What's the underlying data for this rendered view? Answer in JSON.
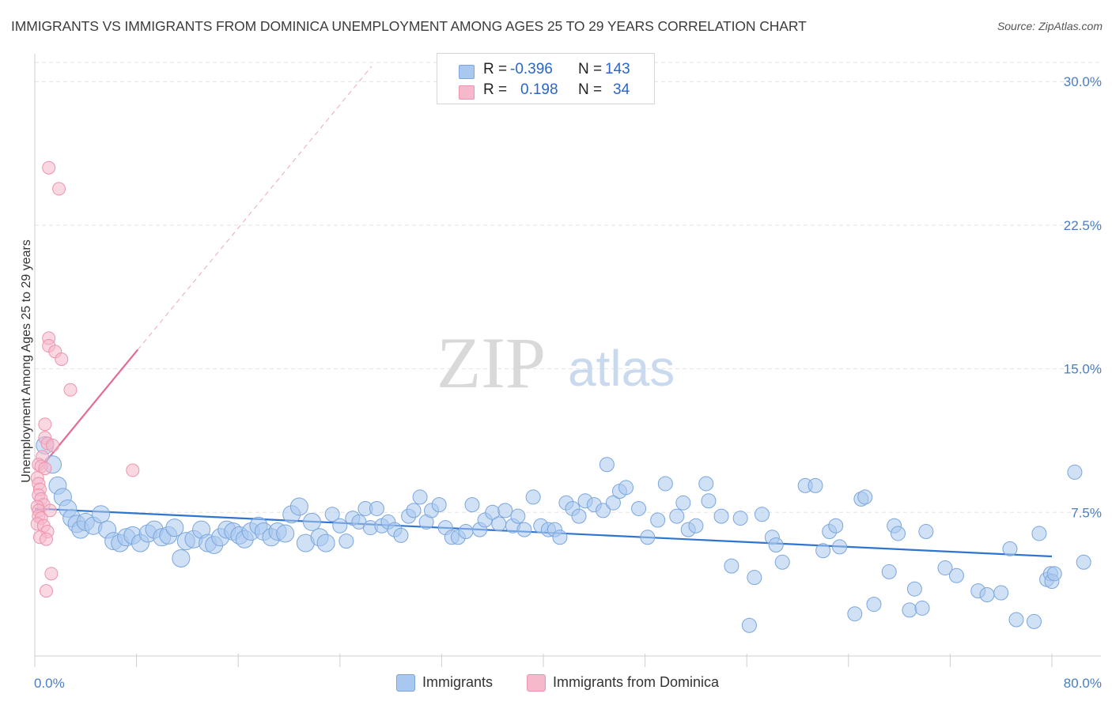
{
  "title": "IMMIGRANTS VS IMMIGRANTS FROM DOMINICA UNEMPLOYMENT AMONG AGES 25 TO 29 YEARS CORRELATION CHART",
  "source": "Source: ZipAtlas.com",
  "watermark": {
    "zip": "ZIP",
    "atlas": "atlas"
  },
  "legend": {
    "r_label": "R =",
    "n_label": "N =",
    "rows": [
      {
        "name": "Immigrants",
        "r": "-0.396",
        "n": "143"
      },
      {
        "name": "Immigrants from Dominica",
        "r": "0.198",
        "n": "34"
      }
    ]
  },
  "colors": {
    "blue_fill": "#a9c8ef",
    "blue_stroke": "#7aa6dd",
    "blue_line": "#2f74d0",
    "pink_fill": "#f6b8cb",
    "pink_stroke": "#ec93ad",
    "pink_line": "#e26c93",
    "grid": "#e3e3e3",
    "axis_text": "#4a7ec2"
  },
  "chart_data": {
    "type": "scatter",
    "title": "IMMIGRANTS VS IMMIGRANTS FROM DOMINICA UNEMPLOYMENT AMONG AGES 25 TO 29 YEARS CORRELATION CHART",
    "xlabel": "",
    "ylabel": "Unemployment Among Ages 25 to 29 years",
    "xlim": [
      0,
      80
    ],
    "ylim": [
      0,
      31
    ],
    "x_tick_labels": [
      "0.0%",
      "80.0%"
    ],
    "y_ticks": [
      7.5,
      15.0,
      22.5,
      30.0
    ],
    "y_tick_labels": [
      "7.5%",
      "15.0%",
      "22.5%",
      "30.0%"
    ],
    "grid": true,
    "legend_position": "top-center",
    "series": [
      {
        "name": "Immigrants",
        "R": -0.396,
        "N": 143,
        "trend": {
          "x": [
            0,
            80
          ],
          "y": [
            7.7,
            5.2
          ]
        },
        "points": [
          [
            0.8,
            11.0
          ],
          [
            1.4,
            10.0
          ],
          [
            1.8,
            8.9
          ],
          [
            2.2,
            8.3
          ],
          [
            2.6,
            7.7
          ],
          [
            2.9,
            7.2
          ],
          [
            3.3,
            6.9
          ],
          [
            3.6,
            6.6
          ],
          [
            4.0,
            7.0
          ],
          [
            4.6,
            6.8
          ],
          [
            5.2,
            7.4
          ],
          [
            5.7,
            6.6
          ],
          [
            6.2,
            6.0
          ],
          [
            6.7,
            5.9
          ],
          [
            7.2,
            6.2
          ],
          [
            7.7,
            6.3
          ],
          [
            8.3,
            5.9
          ],
          [
            8.9,
            6.4
          ],
          [
            9.4,
            6.6
          ],
          [
            10.0,
            6.2
          ],
          [
            10.5,
            6.3
          ],
          [
            11.0,
            6.7
          ],
          [
            11.5,
            5.1
          ],
          [
            11.9,
            6.0
          ],
          [
            12.5,
            6.1
          ],
          [
            13.1,
            6.6
          ],
          [
            13.6,
            5.9
          ],
          [
            14.1,
            5.8
          ],
          [
            14.6,
            6.2
          ],
          [
            15.1,
            6.6
          ],
          [
            15.6,
            6.5
          ],
          [
            16.1,
            6.3
          ],
          [
            16.5,
            6.1
          ],
          [
            17.0,
            6.5
          ],
          [
            17.6,
            6.8
          ],
          [
            18.0,
            6.5
          ],
          [
            18.6,
            6.2
          ],
          [
            19.1,
            6.5
          ],
          [
            19.7,
            6.4
          ],
          [
            20.2,
            7.4
          ],
          [
            20.8,
            7.8
          ],
          [
            21.3,
            5.9
          ],
          [
            21.8,
            7.0
          ],
          [
            22.4,
            6.2
          ],
          [
            22.9,
            5.9
          ],
          [
            23.4,
            7.4
          ],
          [
            24.0,
            6.8
          ],
          [
            24.5,
            6.0
          ],
          [
            25.0,
            7.2
          ],
          [
            25.5,
            7.0
          ],
          [
            26.0,
            7.7
          ],
          [
            26.4,
            6.7
          ],
          [
            26.9,
            7.7
          ],
          [
            27.3,
            6.8
          ],
          [
            27.8,
            7.0
          ],
          [
            28.3,
            6.6
          ],
          [
            28.8,
            6.3
          ],
          [
            29.4,
            7.3
          ],
          [
            29.8,
            7.6
          ],
          [
            30.3,
            8.3
          ],
          [
            30.8,
            7.0
          ],
          [
            31.2,
            7.6
          ],
          [
            31.8,
            7.9
          ],
          [
            32.3,
            6.7
          ],
          [
            32.8,
            6.2
          ],
          [
            33.3,
            6.2
          ],
          [
            33.9,
            6.5
          ],
          [
            34.4,
            7.9
          ],
          [
            35.0,
            6.6
          ],
          [
            35.4,
            7.1
          ],
          [
            36.0,
            7.5
          ],
          [
            36.5,
            6.9
          ],
          [
            37.0,
            7.6
          ],
          [
            37.6,
            6.8
          ],
          [
            38.0,
            7.3
          ],
          [
            38.5,
            6.6
          ],
          [
            39.2,
            8.3
          ],
          [
            39.8,
            6.8
          ],
          [
            40.4,
            6.6
          ],
          [
            40.9,
            6.6
          ],
          [
            41.3,
            6.2
          ],
          [
            41.8,
            8.0
          ],
          [
            42.3,
            7.7
          ],
          [
            42.8,
            7.3
          ],
          [
            43.3,
            8.1
          ],
          [
            44.0,
            7.9
          ],
          [
            44.7,
            7.6
          ],
          [
            45.0,
            10.0
          ],
          [
            45.5,
            8.0
          ],
          [
            46.0,
            8.6
          ],
          [
            46.5,
            8.8
          ],
          [
            47.5,
            7.7
          ],
          [
            48.2,
            6.2
          ],
          [
            49.0,
            7.1
          ],
          [
            49.6,
            9.0
          ],
          [
            50.5,
            7.3
          ],
          [
            51.0,
            8.0
          ],
          [
            51.4,
            6.6
          ],
          [
            52.0,
            6.8
          ],
          [
            52.8,
            9.0
          ],
          [
            53.0,
            8.1
          ],
          [
            54.0,
            7.3
          ],
          [
            54.8,
            4.7
          ],
          [
            55.5,
            7.2
          ],
          [
            56.2,
            1.6
          ],
          [
            56.6,
            4.1
          ],
          [
            57.2,
            7.4
          ],
          [
            58.0,
            6.2
          ],
          [
            58.3,
            5.8
          ],
          [
            58.8,
            4.9
          ],
          [
            60.6,
            8.9
          ],
          [
            61.4,
            8.9
          ],
          [
            62.0,
            5.5
          ],
          [
            62.5,
            6.5
          ],
          [
            63.0,
            6.8
          ],
          [
            63.3,
            5.7
          ],
          [
            64.5,
            2.2
          ],
          [
            65.0,
            8.2
          ],
          [
            65.3,
            8.3
          ],
          [
            66.0,
            2.7
          ],
          [
            67.2,
            4.4
          ],
          [
            67.6,
            6.8
          ],
          [
            67.9,
            6.4
          ],
          [
            68.8,
            2.4
          ],
          [
            69.2,
            3.5
          ],
          [
            69.8,
            2.5
          ],
          [
            70.1,
            6.5
          ],
          [
            71.6,
            4.6
          ],
          [
            72.5,
            4.2
          ],
          [
            74.2,
            3.4
          ],
          [
            74.9,
            3.2
          ],
          [
            76.0,
            3.3
          ],
          [
            76.7,
            5.6
          ],
          [
            77.2,
            1.9
          ],
          [
            78.6,
            1.8
          ],
          [
            79.0,
            6.4
          ],
          [
            79.6,
            4.0
          ],
          [
            79.9,
            4.3
          ],
          [
            80.0,
            3.9
          ],
          [
            80.2,
            4.3
          ],
          [
            81.8,
            9.6
          ],
          [
            82.5,
            4.9
          ]
        ]
      },
      {
        "name": "Immigrants from Dominica",
        "R": 0.198,
        "N": 34,
        "trend": {
          "x": [
            0.3,
            8.1
          ],
          "y": [
            9.7,
            16.0
          ],
          "extended_to": [
            26.5,
            30.8
          ]
        },
        "points": [
          [
            1.1,
            25.5
          ],
          [
            1.9,
            24.4
          ],
          [
            1.1,
            16.6
          ],
          [
            1.1,
            16.2
          ],
          [
            1.6,
            15.9
          ],
          [
            2.1,
            15.5
          ],
          [
            2.8,
            13.9
          ],
          [
            0.8,
            12.1
          ],
          [
            0.8,
            11.4
          ],
          [
            1.0,
            11.1
          ],
          [
            1.4,
            11.0
          ],
          [
            0.6,
            10.4
          ],
          [
            0.3,
            10.0
          ],
          [
            0.5,
            9.9
          ],
          [
            0.8,
            9.8
          ],
          [
            7.7,
            9.7
          ],
          [
            0.2,
            9.3
          ],
          [
            0.3,
            9.0
          ],
          [
            0.4,
            8.7
          ],
          [
            0.3,
            8.4
          ],
          [
            0.5,
            8.2
          ],
          [
            0.7,
            7.9
          ],
          [
            0.2,
            7.8
          ],
          [
            0.3,
            7.6
          ],
          [
            1.2,
            7.6
          ],
          [
            0.3,
            7.3
          ],
          [
            0.5,
            7.2
          ],
          [
            0.2,
            6.9
          ],
          [
            0.7,
            6.8
          ],
          [
            1.0,
            6.5
          ],
          [
            0.4,
            6.2
          ],
          [
            0.9,
            6.1
          ],
          [
            1.3,
            4.3
          ],
          [
            0.9,
            3.4
          ]
        ]
      }
    ]
  }
}
